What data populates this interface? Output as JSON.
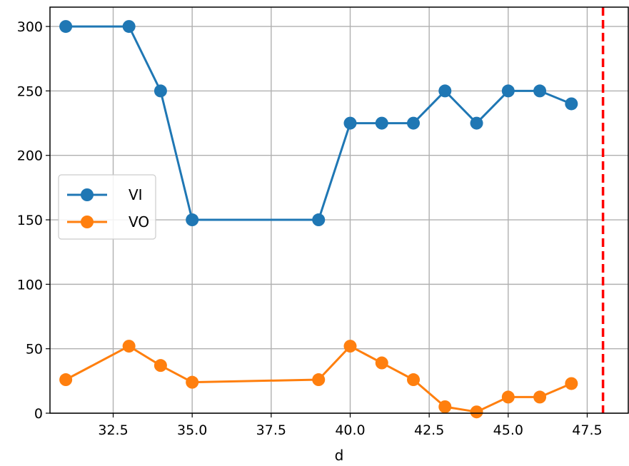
{
  "chart_data": {
    "type": "line",
    "title": "",
    "xlabel": "d",
    "ylabel": "",
    "xlim": [
      30.5,
      48.8
    ],
    "ylim": [
      0,
      315
    ],
    "grid": true,
    "legend": {
      "placement": "center-left"
    },
    "xticks": [
      32.5,
      35.0,
      37.5,
      40.0,
      42.5,
      45.0,
      47.5
    ],
    "xtick_labels": [
      "32.5",
      "35.0",
      "37.5",
      "40.0",
      "42.5",
      "45.0",
      "47.5"
    ],
    "yticks": [
      0,
      50,
      100,
      150,
      200,
      250,
      300
    ],
    "ytick_labels": [
      "0",
      "50",
      "100",
      "150",
      "200",
      "250",
      "300"
    ],
    "series": [
      {
        "name": "VI",
        "color": "#1f77b4",
        "marker": "circle",
        "x": [
          31,
          33,
          34,
          35,
          39,
          40,
          41,
          42,
          43,
          44,
          45,
          46,
          47
        ],
        "y": [
          300,
          300,
          250,
          150,
          150,
          225,
          225,
          225,
          250,
          225,
          250,
          250,
          240
        ]
      },
      {
        "name": "VO",
        "color": "#ff7f0e",
        "marker": "circle",
        "x": [
          31,
          33,
          34,
          35,
          39,
          40,
          41,
          42,
          43,
          44,
          45,
          46,
          47
        ],
        "y": [
          26,
          52,
          37,
          24,
          26,
          52,
          39,
          26,
          5,
          1,
          12.5,
          12.5,
          23
        ]
      }
    ],
    "vlines": [
      {
        "x": 48.0,
        "color": "#ff0000",
        "style": "dashed"
      }
    ]
  }
}
